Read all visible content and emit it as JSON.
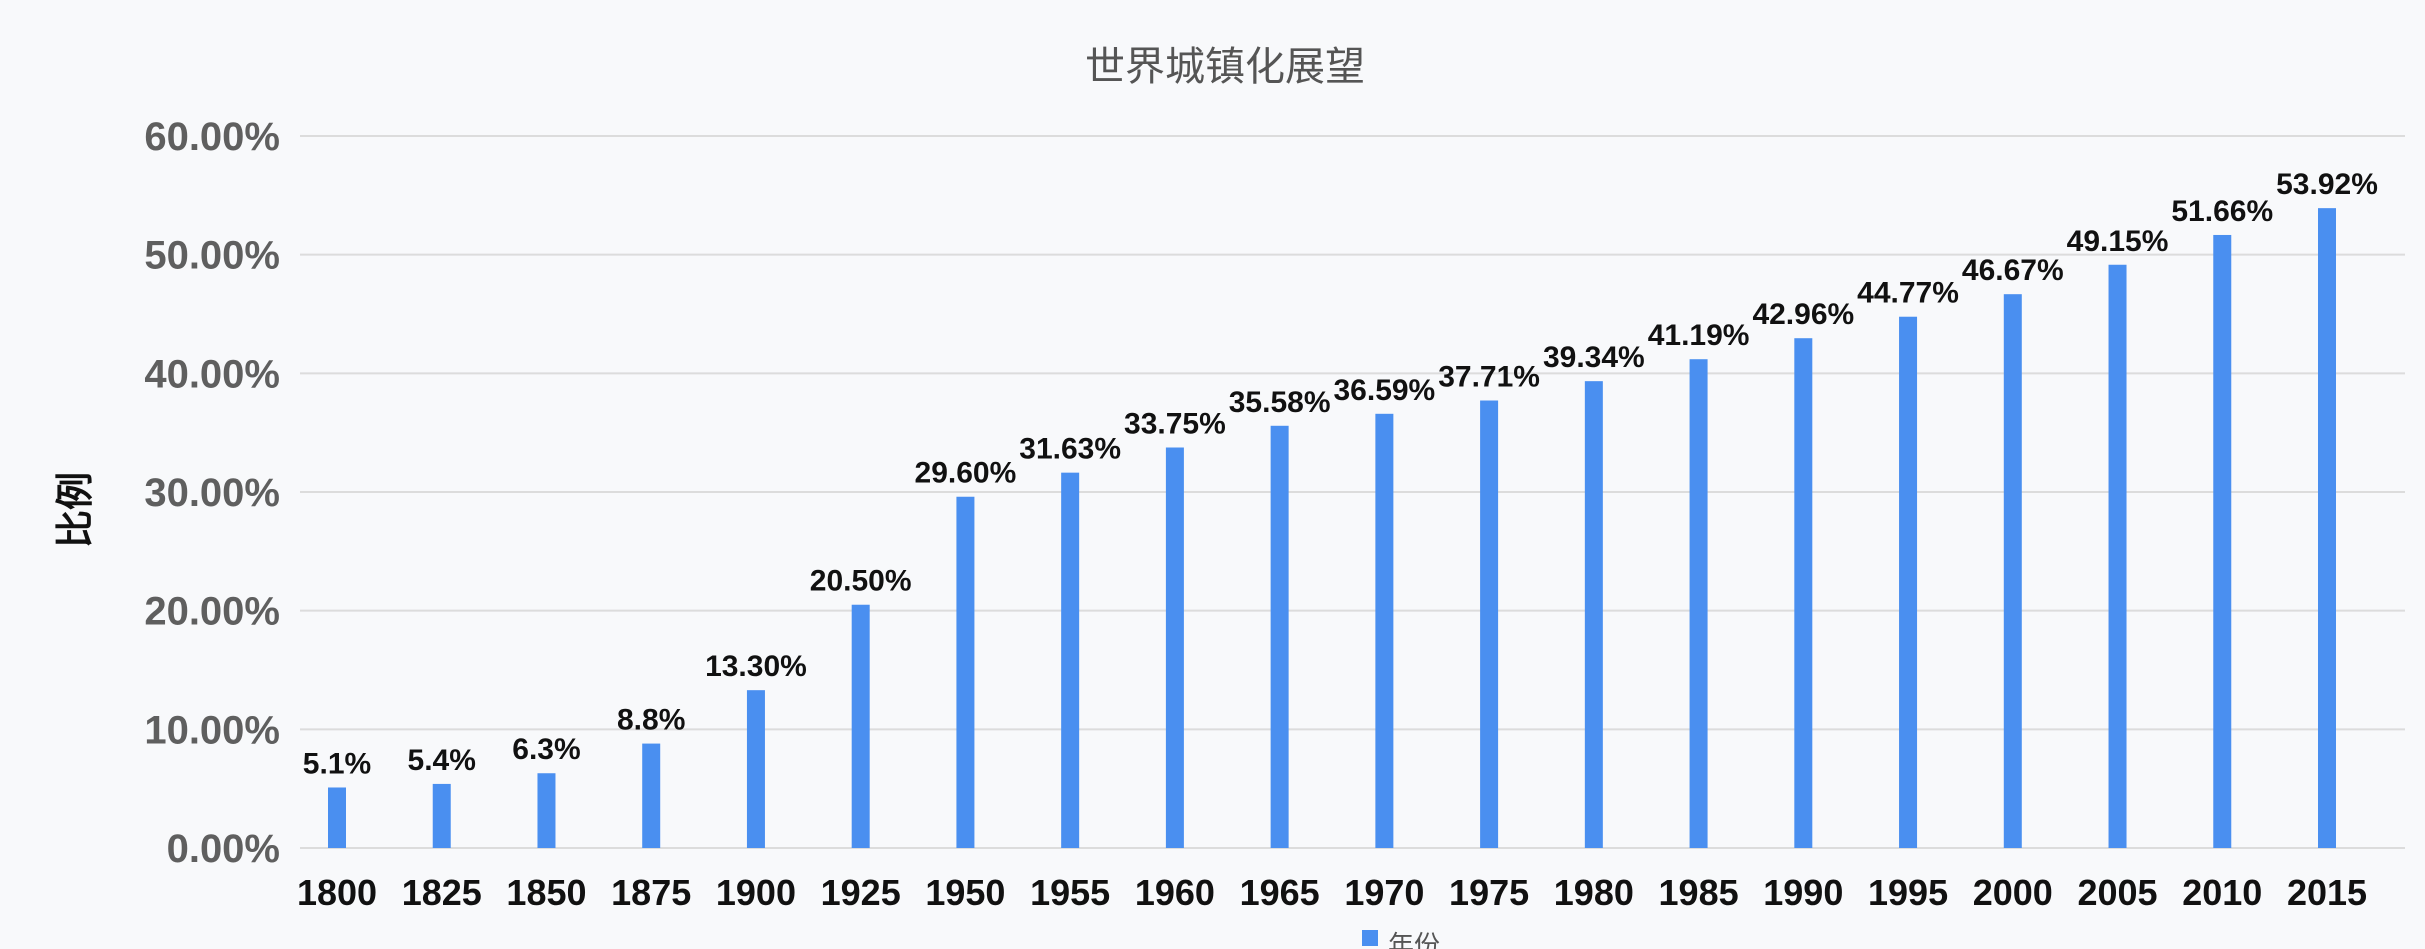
{
  "chart_data": {
    "type": "bar",
    "title": "世界城镇化展望",
    "ylabel": "比例",
    "xlabel": "",
    "ylim": [
      0,
      60
    ],
    "yticks": [
      "0.00%",
      "10.00%",
      "20.00%",
      "30.00%",
      "40.00%",
      "50.00%",
      "60.00%"
    ],
    "grid": true,
    "legend_position": "bottom",
    "categories": [
      "1800",
      "1825",
      "1850",
      "1875",
      "1900",
      "1925",
      "1950",
      "1955",
      "1960",
      "1965",
      "1970",
      "1975",
      "1980",
      "1985",
      "1990",
      "1995",
      "2000",
      "2005",
      "2010",
      "2015"
    ],
    "series": [
      {
        "name": "年份",
        "color": "#4a8ff0",
        "values": [
          5.1,
          5.4,
          6.3,
          8.8,
          13.3,
          20.5,
          29.6,
          31.63,
          33.75,
          35.58,
          36.59,
          37.71,
          39.34,
          41.19,
          42.96,
          44.77,
          46.67,
          49.15,
          51.66,
          53.92
        ],
        "labels": [
          "5.1%",
          "5.4%",
          "6.3%",
          "8.8%",
          "13.30%",
          "20.50%",
          "29.60%",
          "31.63%",
          "33.75%",
          "35.58%",
          "36.59%",
          "37.71%",
          "39.34%",
          "41.19%",
          "42.96%",
          "44.77%",
          "46.67%",
          "49.15%",
          "51.66%",
          "53.92%"
        ]
      }
    ]
  }
}
